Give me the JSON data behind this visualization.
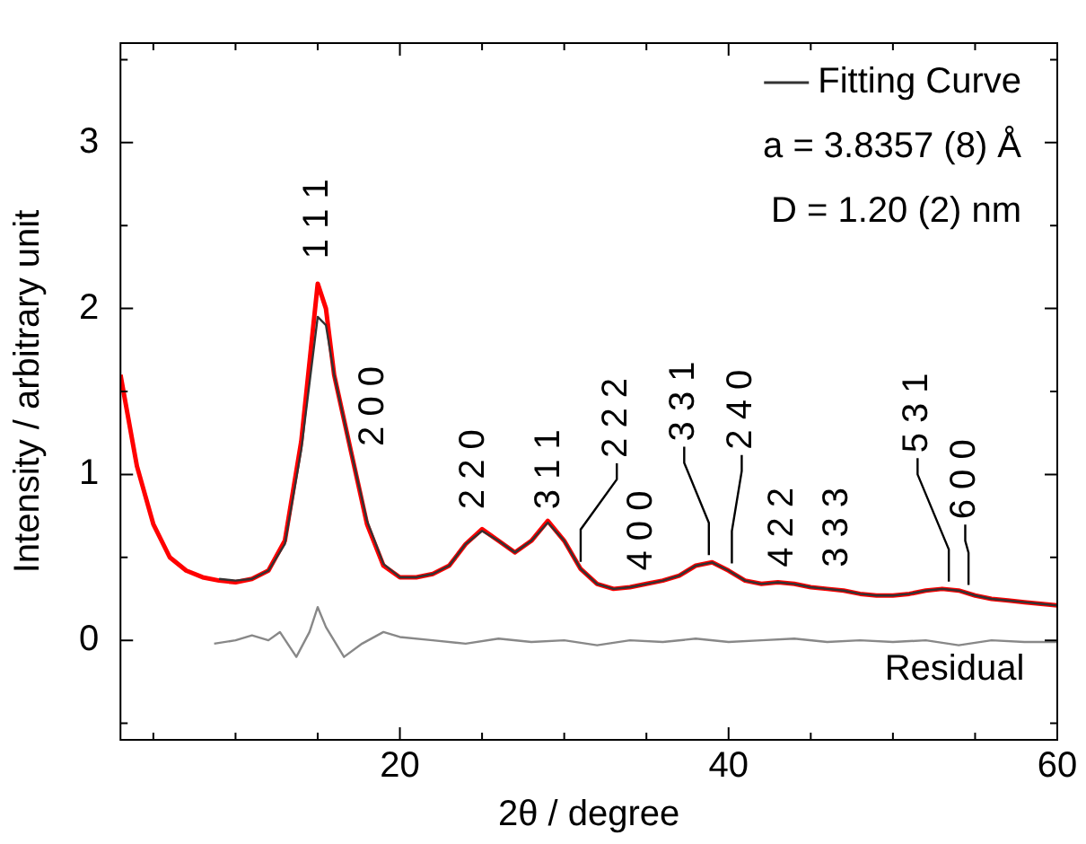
{
  "chart_data": {
    "type": "line",
    "xlabel": "2θ / degree",
    "ylabel": "Intensity / arbitrary unit",
    "xlim": [
      3,
      60
    ],
    "ylim": [
      -0.6,
      3.6
    ],
    "xticks": [
      {
        "value": 5,
        "label": null
      },
      {
        "value": 10,
        "label": null
      },
      {
        "value": 15,
        "label": null
      },
      20,
      {
        "value": 25,
        "label": null
      },
      {
        "value": 30,
        "label": null
      },
      {
        "value": 35,
        "label": null
      },
      40,
      {
        "value": 45,
        "label": null
      },
      {
        "value": 50,
        "label": null
      },
      {
        "value": 55,
        "label": null
      },
      60
    ],
    "yticks": [
      {
        "value": -0.5,
        "label": null
      },
      0,
      {
        "value": 0.5,
        "label": null
      },
      1,
      {
        "value": 1.5,
        "label": null
      },
      2,
      {
        "value": 2.5,
        "label": null
      },
      3,
      {
        "value": 3.5,
        "label": null
      }
    ],
    "grid": false,
    "legend": "top right",
    "marker": "none",
    "series": [
      {
        "color": "#ff0000",
        "x": [
          3,
          4,
          5,
          6,
          7,
          8,
          9,
          10,
          11,
          12,
          13,
          14,
          15,
          15.5,
          16,
          17,
          18,
          19,
          20,
          21,
          22,
          23,
          24,
          25,
          26,
          27,
          28,
          29,
          30,
          31,
          32,
          33,
          34,
          35,
          36,
          37,
          38,
          39,
          40,
          41,
          42,
          43,
          44,
          45,
          46,
          47,
          48,
          49,
          50,
          51,
          52,
          53,
          54,
          55,
          56,
          57,
          58,
          59,
          60
        ],
        "values": [
          1.6,
          1.05,
          0.7,
          0.5,
          0.42,
          0.38,
          0.36,
          0.35,
          0.37,
          0.42,
          0.6,
          1.2,
          2.15,
          2.0,
          1.6,
          1.15,
          0.7,
          0.45,
          0.38,
          0.38,
          0.4,
          0.45,
          0.58,
          0.67,
          0.6,
          0.53,
          0.6,
          0.72,
          0.6,
          0.43,
          0.34,
          0.31,
          0.32,
          0.34,
          0.36,
          0.39,
          0.45,
          0.47,
          0.42,
          0.36,
          0.34,
          0.35,
          0.34,
          0.32,
          0.31,
          0.3,
          0.28,
          0.27,
          0.27,
          0.28,
          0.3,
          0.31,
          0.3,
          0.27,
          0.25,
          0.24,
          0.23,
          0.22,
          0.21
        ]
      },
      {
        "name": "Fitting Curve",
        "color": "#333333",
        "x": [
          9,
          10,
          11,
          12,
          13,
          14,
          15,
          15.5,
          16,
          17,
          18,
          19,
          20,
          21,
          22,
          23,
          24,
          25,
          26,
          27,
          28,
          29,
          30,
          31,
          32,
          33,
          34,
          35,
          36,
          37,
          38,
          39,
          40,
          41,
          42,
          43,
          44,
          45,
          46,
          47,
          48,
          49,
          50,
          51,
          52,
          53,
          54,
          55,
          56,
          57,
          58,
          59,
          60
        ],
        "values": [
          0.37,
          0.36,
          0.37,
          0.42,
          0.58,
          1.15,
          1.95,
          1.9,
          1.6,
          1.15,
          0.72,
          0.46,
          0.38,
          0.38,
          0.4,
          0.45,
          0.58,
          0.66,
          0.6,
          0.53,
          0.6,
          0.71,
          0.6,
          0.43,
          0.34,
          0.31,
          0.32,
          0.34,
          0.36,
          0.39,
          0.45,
          0.47,
          0.42,
          0.36,
          0.34,
          0.35,
          0.34,
          0.32,
          0.31,
          0.3,
          0.28,
          0.27,
          0.27,
          0.28,
          0.3,
          0.31,
          0.3,
          0.27,
          0.25,
          0.24,
          0.23,
          0.22,
          0.21
        ]
      },
      {
        "color": "#888888",
        "x": [
          8.7,
          10,
          11,
          12,
          12.7,
          13.7,
          14.5,
          15,
          15.5,
          16.6,
          17.7,
          19,
          20,
          22,
          24,
          26,
          28,
          30,
          32,
          34,
          36,
          38,
          40,
          42,
          44,
          46,
          48,
          50,
          52,
          54,
          56,
          58,
          60
        ],
        "values": [
          -0.02,
          0.0,
          0.03,
          0.0,
          0.05,
          -0.1,
          0.05,
          0.2,
          0.08,
          -0.1,
          -0.02,
          0.05,
          0.02,
          0.0,
          -0.02,
          0.01,
          -0.01,
          0.0,
          -0.03,
          0.0,
          -0.01,
          0.01,
          -0.01,
          0.0,
          0.01,
          -0.01,
          0.0,
          -0.01,
          0.0,
          -0.03,
          0.0,
          -0.01,
          -0.01
        ]
      }
    ],
    "annotations": [
      "a = 3.8357 (8) Å",
      "D = 1.20 (2) nm",
      "Residual",
      "1 1 1",
      "2 0 0",
      "2 2 0",
      "3 1 1",
      {
        "text": "2 2 2",
        "x": 31,
        "y": 0.43
      },
      "4 0 0",
      {
        "text": "3 3 1",
        "x": 38.8,
        "y": 0.47
      },
      {
        "text": "2 4 0",
        "x": 40.2,
        "y": 0.42
      },
      "4 2 2",
      "3 3 3",
      {
        "text": "5 3 1",
        "x": 53.4,
        "y": 0.31
      },
      {
        "text": "6 0 0",
        "x": 54.6,
        "y": 0.29
      }
    ]
  }
}
